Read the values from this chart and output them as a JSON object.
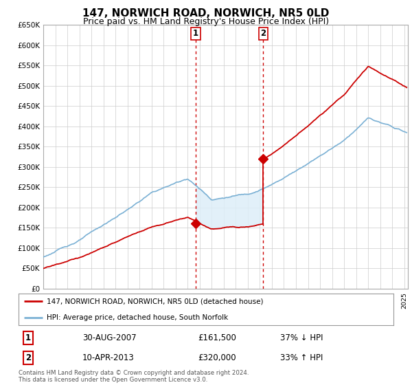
{
  "title": "147, NORWICH ROAD, NORWICH, NR5 0LD",
  "subtitle": "Price paid vs. HM Land Registry's House Price Index (HPI)",
  "ylim": [
    0,
    650000
  ],
  "yticks": [
    0,
    50000,
    100000,
    150000,
    200000,
    250000,
    300000,
    350000,
    400000,
    450000,
    500000,
    550000,
    600000,
    650000
  ],
  "xlim_start": 1995.0,
  "xlim_end": 2025.3,
  "property_color": "#cc0000",
  "hpi_color": "#7ab0d4",
  "shade_color": "#ddeef8",
  "sale1_x": 2007.67,
  "sale1_y": 161500,
  "sale2_x": 2013.27,
  "sale2_y": 320000,
  "legend_label1": "147, NORWICH ROAD, NORWICH, NR5 0LD (detached house)",
  "legend_label2": "HPI: Average price, detached house, South Norfolk",
  "table_row1": [
    "1",
    "30-AUG-2007",
    "£161,500",
    "37% ↓ HPI"
  ],
  "table_row2": [
    "2",
    "10-APR-2013",
    "£320,000",
    "33% ↑ HPI"
  ],
  "footer": "Contains HM Land Registry data © Crown copyright and database right 2024.\nThis data is licensed under the Open Government Licence v3.0.",
  "grid_color": "#cccccc",
  "background_color": "#ffffff",
  "title_fontsize": 11,
  "subtitle_fontsize": 9
}
